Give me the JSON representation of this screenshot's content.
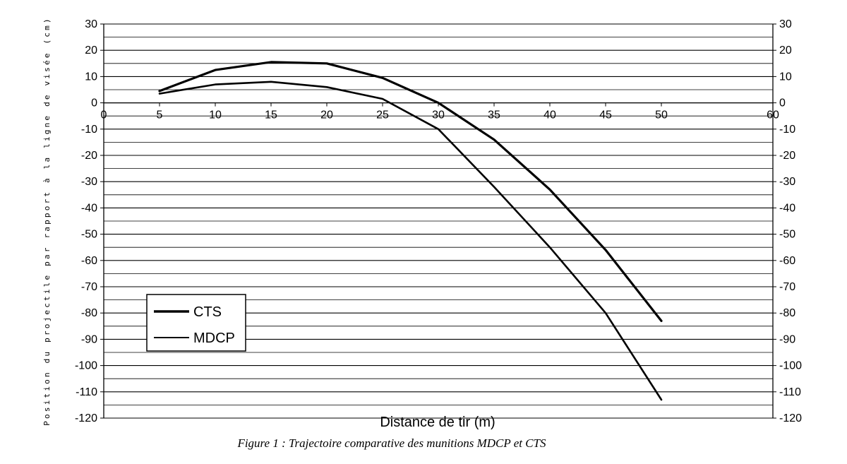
{
  "chart_data": {
    "type": "line",
    "xlabel": "Distance de tir (m)",
    "ylabel": "Position du projectile par rapport à la ligne de visée (cm)",
    "caption": "Figure 1 : Trajectoire comparative des munitions MDCP et CTS",
    "xlim": [
      0,
      60
    ],
    "ylim": [
      -120,
      30
    ],
    "x_ticks": [
      0,
      5,
      10,
      15,
      20,
      25,
      30,
      35,
      40,
      45,
      50,
      60
    ],
    "y_ticks": [
      30,
      20,
      10,
      0,
      -10,
      -20,
      -30,
      -40,
      -50,
      -60,
      -70,
      -80,
      -90,
      -100,
      -110,
      -120
    ],
    "grid": "horizontal",
    "legend_position": "bottom-left",
    "series": [
      {
        "name": "CTS",
        "color": "#000000",
        "x": [
          5,
          10,
          15,
          20,
          25,
          30,
          35,
          40,
          45,
          50
        ],
        "y": [
          4.5,
          12.5,
          15.5,
          15,
          9.5,
          0,
          -14,
          -33,
          -56,
          -83
        ]
      },
      {
        "name": "MDCP",
        "color": "#000000",
        "x": [
          5,
          10,
          15,
          20,
          25,
          30,
          35,
          40,
          45,
          50
        ],
        "y": [
          3.5,
          7,
          8,
          6,
          1.5,
          -10,
          -32,
          -55,
          -80,
          -113
        ]
      }
    ]
  }
}
